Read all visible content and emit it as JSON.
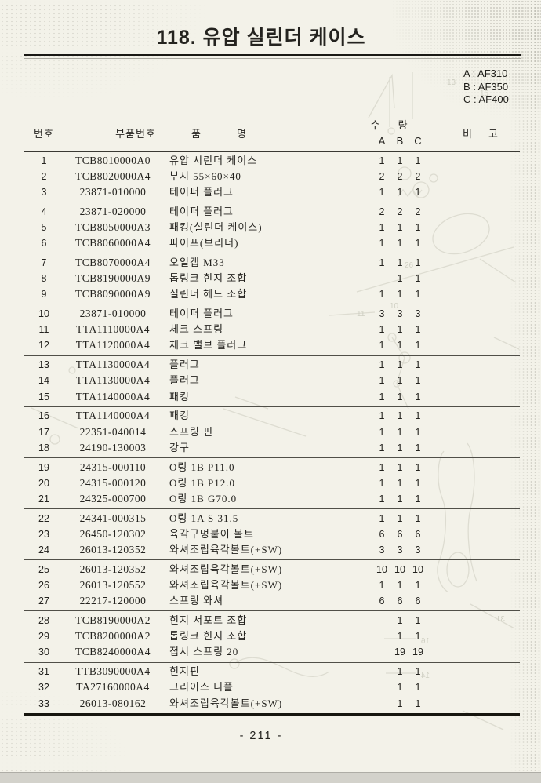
{
  "page": {
    "title": "118. 유압 실린더 케이스",
    "page_number": "- 211 -"
  },
  "colors": {
    "paper": "#f3f2e9",
    "ink": "#24231f",
    "rule": "#504f48",
    "scan_edge": "#d3d2cb"
  },
  "legend": {
    "items": [
      {
        "key": "A",
        "model": "AF310",
        "label": "A : AF310"
      },
      {
        "key": "B",
        "model": "AF350",
        "label": "B : AF350"
      },
      {
        "key": "C",
        "model": "AF400",
        "label": "C : AF400"
      }
    ]
  },
  "table": {
    "headers": {
      "no": "번호",
      "part_no": "부품번호",
      "name_1": "품",
      "name_2": "명",
      "qty": "수 량",
      "qty_a": "A",
      "qty_b": "B",
      "qty_c": "C",
      "remarks_1": "비",
      "remarks_2": "고"
    },
    "rows_per_group": 3,
    "rows": [
      {
        "no": "1",
        "part_no": "TCB8010000A0",
        "name": "유압 시린더 케이스",
        "a": "1",
        "b": "1",
        "c": "1"
      },
      {
        "no": "2",
        "part_no": "TCB8020000A4",
        "name": "부시 55×60×40",
        "a": "2",
        "b": "2",
        "c": "2"
      },
      {
        "no": "3",
        "part_no": "23871-010000",
        "name": "테이퍼 플러그",
        "a": "1",
        "b": "1",
        "c": "1"
      },
      {
        "no": "4",
        "part_no": "23871-020000",
        "name": "테이퍼 플러그",
        "a": "2",
        "b": "2",
        "c": "2"
      },
      {
        "no": "5",
        "part_no": "TCB8050000A3",
        "name": "패킹(실린더 케이스)",
        "a": "1",
        "b": "1",
        "c": "1"
      },
      {
        "no": "6",
        "part_no": "TCB8060000A4",
        "name": "파이프(브리더)",
        "a": "1",
        "b": "1",
        "c": "1"
      },
      {
        "no": "7",
        "part_no": "TCB8070000A4",
        "name": "오일캡 M33",
        "a": "1",
        "b": "1",
        "c": "1"
      },
      {
        "no": "8",
        "part_no": "TCB8190000A9",
        "name": "톱링크 힌지 조합",
        "a": "",
        "b": "1",
        "c": "1"
      },
      {
        "no": "9",
        "part_no": "TCB8090000A9",
        "name": "실린더 헤드 조합",
        "a": "1",
        "b": "1",
        "c": "1"
      },
      {
        "no": "10",
        "part_no": "23871-010000",
        "name": "테이퍼 플러그",
        "a": "3",
        "b": "3",
        "c": "3"
      },
      {
        "no": "11",
        "part_no": "TTA1110000A4",
        "name": "체크 스프링",
        "a": "1",
        "b": "1",
        "c": "1"
      },
      {
        "no": "12",
        "part_no": "TTA1120000A4",
        "name": "체크 밸브 플러그",
        "a": "1",
        "b": "1",
        "c": "1"
      },
      {
        "no": "13",
        "part_no": "TTA1130000A4",
        "name": "플러그",
        "a": "1",
        "b": "1",
        "c": "1"
      },
      {
        "no": "14",
        "part_no": "TTA1130000A4",
        "name": "플러그",
        "a": "1",
        "b": "1",
        "c": "1"
      },
      {
        "no": "15",
        "part_no": "TTA1140000A4",
        "name": "패킹",
        "a": "1",
        "b": "1",
        "c": "1"
      },
      {
        "no": "16",
        "part_no": "TTA1140000A4",
        "name": "패킹",
        "a": "1",
        "b": "1",
        "c": "1"
      },
      {
        "no": "17",
        "part_no": "22351-040014",
        "name": "스프링 핀",
        "a": "1",
        "b": "1",
        "c": "1"
      },
      {
        "no": "18",
        "part_no": "24190-130003",
        "name": "강구",
        "a": "1",
        "b": "1",
        "c": "1"
      },
      {
        "no": "19",
        "part_no": "24315-000110",
        "name": "O링 1B P11.0",
        "a": "1",
        "b": "1",
        "c": "1"
      },
      {
        "no": "20",
        "part_no": "24315-000120",
        "name": "O링 1B P12.0",
        "a": "1",
        "b": "1",
        "c": "1"
      },
      {
        "no": "21",
        "part_no": "24325-000700",
        "name": "O링 1B G70.0",
        "a": "1",
        "b": "1",
        "c": "1"
      },
      {
        "no": "22",
        "part_no": "24341-000315",
        "name": "O링 1A S 31.5",
        "a": "1",
        "b": "1",
        "c": "1"
      },
      {
        "no": "23",
        "part_no": "26450-120302",
        "name": "육각구멍붙이 볼트",
        "a": "6",
        "b": "6",
        "c": "6"
      },
      {
        "no": "24",
        "part_no": "26013-120352",
        "name": "와셔조립육각볼트(+SW)",
        "a": "3",
        "b": "3",
        "c": "3"
      },
      {
        "no": "25",
        "part_no": "26013-120352",
        "name": "와셔조립육각볼트(+SW)",
        "a": "10",
        "b": "10",
        "c": "10"
      },
      {
        "no": "26",
        "part_no": "26013-120552",
        "name": "와셔조립육각볼트(+SW)",
        "a": "1",
        "b": "1",
        "c": "1"
      },
      {
        "no": "27",
        "part_no": "22217-120000",
        "name": "스프링 와셔",
        "a": "6",
        "b": "6",
        "c": "6"
      },
      {
        "no": "28",
        "part_no": "TCB8190000A2",
        "name": "힌지 서포트 조합",
        "a": "",
        "b": "1",
        "c": "1"
      },
      {
        "no": "29",
        "part_no": "TCB8200000A2",
        "name": "톱링크 힌지 조합",
        "a": "",
        "b": "1",
        "c": "1"
      },
      {
        "no": "30",
        "part_no": "TCB8240000A4",
        "name": "접시 스프링 20",
        "a": "",
        "b": "19",
        "c": "19"
      },
      {
        "no": "31",
        "part_no": "TTB3090000A4",
        "name": "힌지핀",
        "a": "",
        "b": "1",
        "c": "1"
      },
      {
        "no": "32",
        "part_no": "TA27160000A4",
        "name": "그리이스 니플",
        "a": "",
        "b": "1",
        "c": "1"
      },
      {
        "no": "33",
        "part_no": "26013-080162",
        "name": "와셔조립육각볼트(+SW)",
        "a": "",
        "b": "1",
        "c": "1"
      }
    ]
  }
}
